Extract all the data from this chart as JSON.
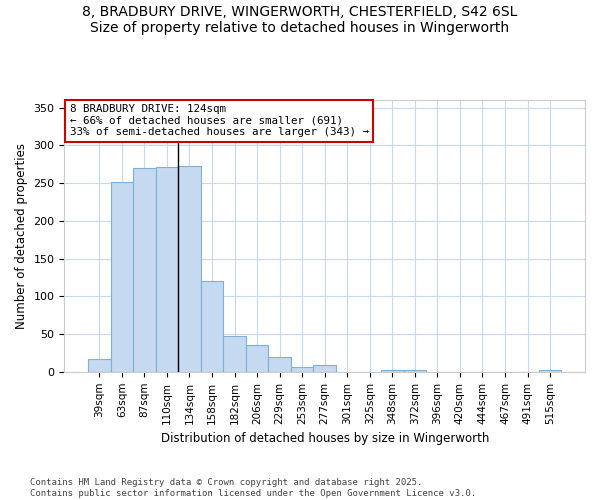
{
  "title_line1": "8, BRADBURY DRIVE, WINGERWORTH, CHESTERFIELD, S42 6SL",
  "title_line2": "Size of property relative to detached houses in Wingerworth",
  "xlabel": "Distribution of detached houses by size in Wingerworth",
  "ylabel": "Number of detached properties",
  "categories": [
    "39sqm",
    "63sqm",
    "87sqm",
    "110sqm",
    "134sqm",
    "158sqm",
    "182sqm",
    "206sqm",
    "229sqm",
    "253sqm",
    "277sqm",
    "301sqm",
    "325sqm",
    "348sqm",
    "372sqm",
    "396sqm",
    "420sqm",
    "444sqm",
    "467sqm",
    "491sqm",
    "515sqm"
  ],
  "values": [
    17,
    252,
    270,
    272,
    273,
    120,
    48,
    35,
    20,
    6,
    9,
    0,
    0,
    3,
    3,
    0,
    0,
    0,
    0,
    0,
    2
  ],
  "bar_color": "#c5d9f0",
  "bar_edge_color": "#7eb0d8",
  "annotation_line1": "8 BRADBURY DRIVE: 124sqm",
  "annotation_line2": "← 66% of detached houses are smaller (691)",
  "annotation_line3": "33% of semi-detached houses are larger (343) →",
  "vline_index": 3.5,
  "vline_color": "#000000",
  "box_edgecolor": "#cc0000",
  "bg_color": "#ffffff",
  "plot_bg_color": "#ffffff",
  "grid_color": "#c8d8ee",
  "footer": "Contains HM Land Registry data © Crown copyright and database right 2025.\nContains public sector information licensed under the Open Government Licence v3.0.",
  "ylim": [
    0,
    360
  ],
  "yticks": [
    0,
    50,
    100,
    150,
    200,
    250,
    300,
    350
  ]
}
